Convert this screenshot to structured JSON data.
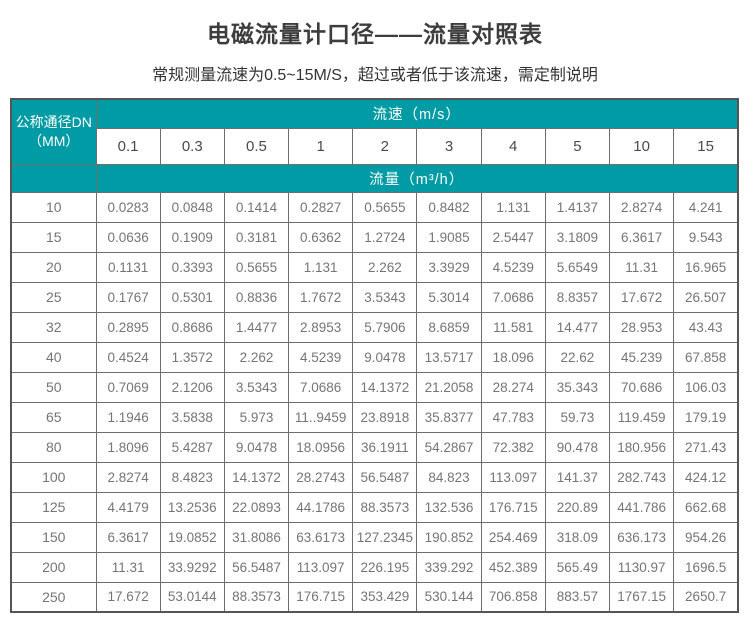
{
  "page": {
    "title": "电磁流量计口径——流量对照表",
    "subtitle": "常规测量流速为0.5~15M/S，超过或者低于该流速，需定制说明"
  },
  "colors": {
    "header_teal": "#009BA4",
    "border_dark": "#555555",
    "border_inner": "#6e6e6e",
    "data_text": "#757575",
    "title_text": "#3d3d3d"
  },
  "table": {
    "corner_header_line1": "公称通径DN",
    "corner_header_line2": "（MM）",
    "velocity_band_label": "流速（m/s）",
    "flow_band_label": "流量（m³/h）",
    "velocities": [
      "0.1",
      "0.3",
      "0.5",
      "1",
      "2",
      "3",
      "4",
      "5",
      "10",
      "15"
    ],
    "rows": [
      {
        "dn": "10",
        "values": [
          "0.0283",
          "0.0848",
          "0.1414",
          "0.2827",
          "0.5655",
          "0.8482",
          "1.131",
          "1.4137",
          "2.8274",
          "4.241"
        ]
      },
      {
        "dn": "15",
        "values": [
          "0.0636",
          "0.1909",
          "0.3181",
          "0.6362",
          "1.2724",
          "1.9085",
          "2.5447",
          "3.1809",
          "6.3617",
          "9.543"
        ]
      },
      {
        "dn": "20",
        "values": [
          "0.1131",
          "0.3393",
          "0.5655",
          "1.131",
          "2.262",
          "3.3929",
          "4.5239",
          "5.6549",
          "11.31",
          "16.965"
        ]
      },
      {
        "dn": "25",
        "values": [
          "0.1767",
          "0.5301",
          "0.8836",
          "1.7672",
          "3.5343",
          "5.3014",
          "7.0686",
          "8.8357",
          "17.672",
          "26.507"
        ]
      },
      {
        "dn": "32",
        "values": [
          "0.2895",
          "0.8686",
          "1.4477",
          "2.8953",
          "5.7906",
          "8.6859",
          "11.581",
          "14.477",
          "28.953",
          "43.43"
        ]
      },
      {
        "dn": "40",
        "values": [
          "0.4524",
          "1.3572",
          "2.262",
          "4.5239",
          "9.0478",
          "13.5717",
          "18.096",
          "22.62",
          "45.239",
          "67.858"
        ]
      },
      {
        "dn": "50",
        "values": [
          "0.7069",
          "2.1206",
          "3.5343",
          "7.0686",
          "14.1372",
          "21.2058",
          "28.274",
          "35.343",
          "70.686",
          "106.03"
        ]
      },
      {
        "dn": "65",
        "values": [
          "1.1946",
          "3.5838",
          "5.973",
          "11..9459",
          "23.8918",
          "35.8377",
          "47.783",
          "59.73",
          "119.459",
          "179.19"
        ]
      },
      {
        "dn": "80",
        "values": [
          "1.8096",
          "5.4287",
          "9.0478",
          "18.0956",
          "36.1911",
          "54.2867",
          "72.382",
          "90.478",
          "180.956",
          "271.43"
        ]
      },
      {
        "dn": "100",
        "values": [
          "2.8274",
          "8.4823",
          "14.1372",
          "28.2743",
          "56.5487",
          "84.823",
          "113.097",
          "141.37",
          "282.743",
          "424.12"
        ]
      },
      {
        "dn": "125",
        "values": [
          "4.4179",
          "13.2536",
          "22.0893",
          "44.1786",
          "88.3573",
          "132.536",
          "176.715",
          "220.89",
          "441.786",
          "662.68"
        ]
      },
      {
        "dn": "150",
        "values": [
          "6.3617",
          "19.0852",
          "31.8086",
          "63.6173",
          "127.2345",
          "190.852",
          "254.469",
          "318.09",
          "636.173",
          "954.26"
        ]
      },
      {
        "dn": "200",
        "values": [
          "11.31",
          "33.9292",
          "56.5487",
          "113.097",
          "226.195",
          "339.292",
          "452.389",
          "565.49",
          "1130.97",
          "1696.5"
        ]
      },
      {
        "dn": "250",
        "values": [
          "17.672",
          "53.0144",
          "88.3573",
          "176.715",
          "353.429",
          "530.144",
          "706.858",
          "883.57",
          "1767.15",
          "2650.7"
        ]
      }
    ]
  }
}
